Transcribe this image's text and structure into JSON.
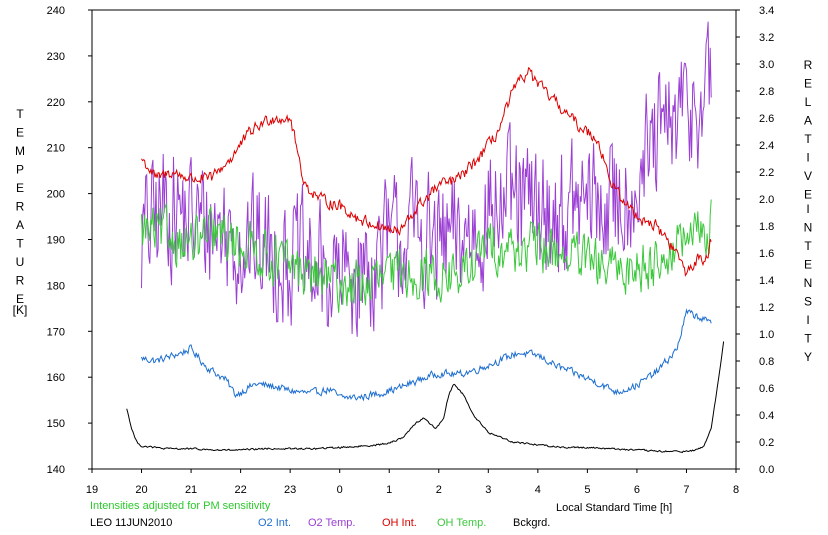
{
  "chart_data": {
    "type": "line",
    "xlabel": "Local Standard Time [h]",
    "xlim": [
      19,
      8
    ],
    "x_ticks": [
      "19",
      "20",
      "21",
      "22",
      "23",
      "0",
      "1",
      "2",
      "3",
      "4",
      "5",
      "6",
      "7",
      "8"
    ],
    "y_left": {
      "label_letters": [
        "T",
        "E",
        "M",
        "P",
        "E",
        "R",
        "A",
        "T",
        "U",
        "R",
        "E"
      ],
      "unit": "[K]",
      "ylim": [
        140,
        240
      ],
      "ticks": [
        "140",
        "150",
        "160",
        "170",
        "180",
        "190",
        "200",
        "210",
        "220",
        "230",
        "240"
      ]
    },
    "y_right": {
      "label_word1": [
        "R",
        "E",
        "L",
        "A",
        "T",
        "I",
        "V",
        "E"
      ],
      "label_word2": [
        "I",
        "N",
        "T",
        "E",
        "N",
        "S",
        "I",
        "T",
        "Y"
      ],
      "ylim": [
        0.0,
        3.4
      ],
      "ticks": [
        "0.0",
        "0.2",
        "0.4",
        "0.6",
        "0.8",
        "1.0",
        "1.2",
        "1.4",
        "1.6",
        "1.8",
        "2.0",
        "2.2",
        "2.4",
        "2.6",
        "2.8",
        "3.0",
        "3.2",
        "3.4"
      ]
    },
    "note": "Intensities adjusted for PM sensitivity",
    "station": "LEO 11JUN2010",
    "colors": {
      "o2_int": "#1e6fd0",
      "o2_temp": "#9b3fd4",
      "oh_int": "#dc0000",
      "oh_temp": "#3cc83c",
      "bckgrd": "#000000",
      "note": "#2ec82e"
    },
    "series": [
      {
        "name": "O2 Int.",
        "axis": "right",
        "color": "#1e6fd0",
        "noise": 0.025,
        "x": [
          20.0,
          20.3,
          20.8,
          21.0,
          21.3,
          21.7,
          21.9,
          22.3,
          22.7,
          23.0,
          23.4,
          23.8,
          24.0,
          24.4,
          24.8,
          25.2,
          25.6,
          26.0,
          26.4,
          26.8,
          27.2,
          27.6,
          28.0,
          28.4,
          28.8,
          29.2,
          29.6,
          30.0,
          30.4,
          30.8,
          31.0,
          31.3,
          31.5
        ],
        "y": [
          0.82,
          0.8,
          0.86,
          0.89,
          0.76,
          0.66,
          0.55,
          0.63,
          0.61,
          0.58,
          0.56,
          0.59,
          0.53,
          0.53,
          0.56,
          0.6,
          0.66,
          0.71,
          0.7,
          0.74,
          0.8,
          0.86,
          0.84,
          0.76,
          0.7,
          0.64,
          0.57,
          0.62,
          0.72,
          0.88,
          1.16,
          1.12,
          1.07
        ]
      },
      {
        "name": "O2 Temp.",
        "axis": "left",
        "color": "#9b3fd4",
        "noise": 13,
        "x": [
          20.0,
          20.5,
          21.0,
          21.5,
          22.0,
          22.5,
          23.0,
          23.5,
          24.0,
          24.5,
          25.0,
          25.5,
          26.0,
          26.5,
          27.0,
          27.5,
          28.0,
          28.5,
          29.0,
          29.5,
          30.0,
          30.5,
          31.0,
          31.5
        ],
        "y": [
          190,
          198,
          194,
          193,
          190,
          188,
          186,
          183,
          181,
          183,
          189,
          192,
          188,
          190,
          196,
          198,
          196,
          195,
          198,
          197,
          203,
          212,
          218,
          222
        ]
      },
      {
        "name": "OH Int.",
        "axis": "right",
        "color": "#dc0000",
        "noise": 0.04,
        "x": [
          20.0,
          20.3,
          20.6,
          21.0,
          21.4,
          21.8,
          22.2,
          22.6,
          23.0,
          23.3,
          23.6,
          24.0,
          24.4,
          24.8,
          25.2,
          25.6,
          26.0,
          26.4,
          26.8,
          27.2,
          27.5,
          27.8,
          28.0,
          28.4,
          28.8,
          29.2,
          29.5,
          29.8,
          30.1,
          30.4,
          30.8,
          31.0,
          31.2,
          31.4,
          31.5
        ],
        "y": [
          2.3,
          2.15,
          2.2,
          2.15,
          2.15,
          2.3,
          2.5,
          2.6,
          2.6,
          2.1,
          2.0,
          1.95,
          1.85,
          1.8,
          1.75,
          1.95,
          2.1,
          2.15,
          2.3,
          2.5,
          2.8,
          2.95,
          2.85,
          2.7,
          2.55,
          2.45,
          2.1,
          1.95,
          1.85,
          1.8,
          1.6,
          1.45,
          1.55,
          1.55,
          1.7
        ]
      },
      {
        "name": "OH Temp.",
        "axis": "left",
        "color": "#3cc83c",
        "noise": 5,
        "x": [
          20.0,
          20.5,
          21.0,
          21.5,
          22.0,
          22.5,
          23.0,
          23.5,
          24.0,
          24.5,
          25.0,
          25.5,
          26.0,
          26.5,
          27.0,
          27.5,
          28.0,
          28.5,
          29.0,
          29.5,
          30.0,
          30.5,
          31.0,
          31.5
        ],
        "y": [
          192,
          191,
          189,
          191,
          189,
          187,
          184,
          182,
          180,
          180,
          182,
          183,
          182,
          182,
          189,
          188,
          188,
          187,
          185,
          183,
          184,
          186,
          190,
          193
        ]
      },
      {
        "name": "Bckgrd.",
        "axis": "right",
        "color": "#000000",
        "noise": 0.006,
        "x": [
          19.7,
          19.8,
          19.9,
          20.0,
          20.5,
          21.0,
          21.5,
          22.0,
          22.5,
          23.0,
          23.5,
          24.0,
          24.5,
          25.0,
          25.3,
          25.5,
          25.7,
          25.8,
          25.95,
          26.1,
          26.2,
          26.3,
          26.5,
          26.7,
          27.0,
          27.5,
          28.0,
          28.5,
          29.0,
          29.5,
          30.0,
          30.5,
          31.0,
          31.2,
          31.35,
          31.5,
          31.6,
          31.7,
          31.75
        ],
        "y": [
          0.45,
          0.3,
          0.2,
          0.17,
          0.15,
          0.15,
          0.14,
          0.14,
          0.15,
          0.15,
          0.15,
          0.16,
          0.17,
          0.19,
          0.24,
          0.33,
          0.38,
          0.34,
          0.3,
          0.38,
          0.55,
          0.63,
          0.55,
          0.4,
          0.27,
          0.2,
          0.18,
          0.16,
          0.16,
          0.15,
          0.14,
          0.13,
          0.13,
          0.14,
          0.17,
          0.3,
          0.55,
          0.8,
          0.95
        ]
      }
    ]
  }
}
